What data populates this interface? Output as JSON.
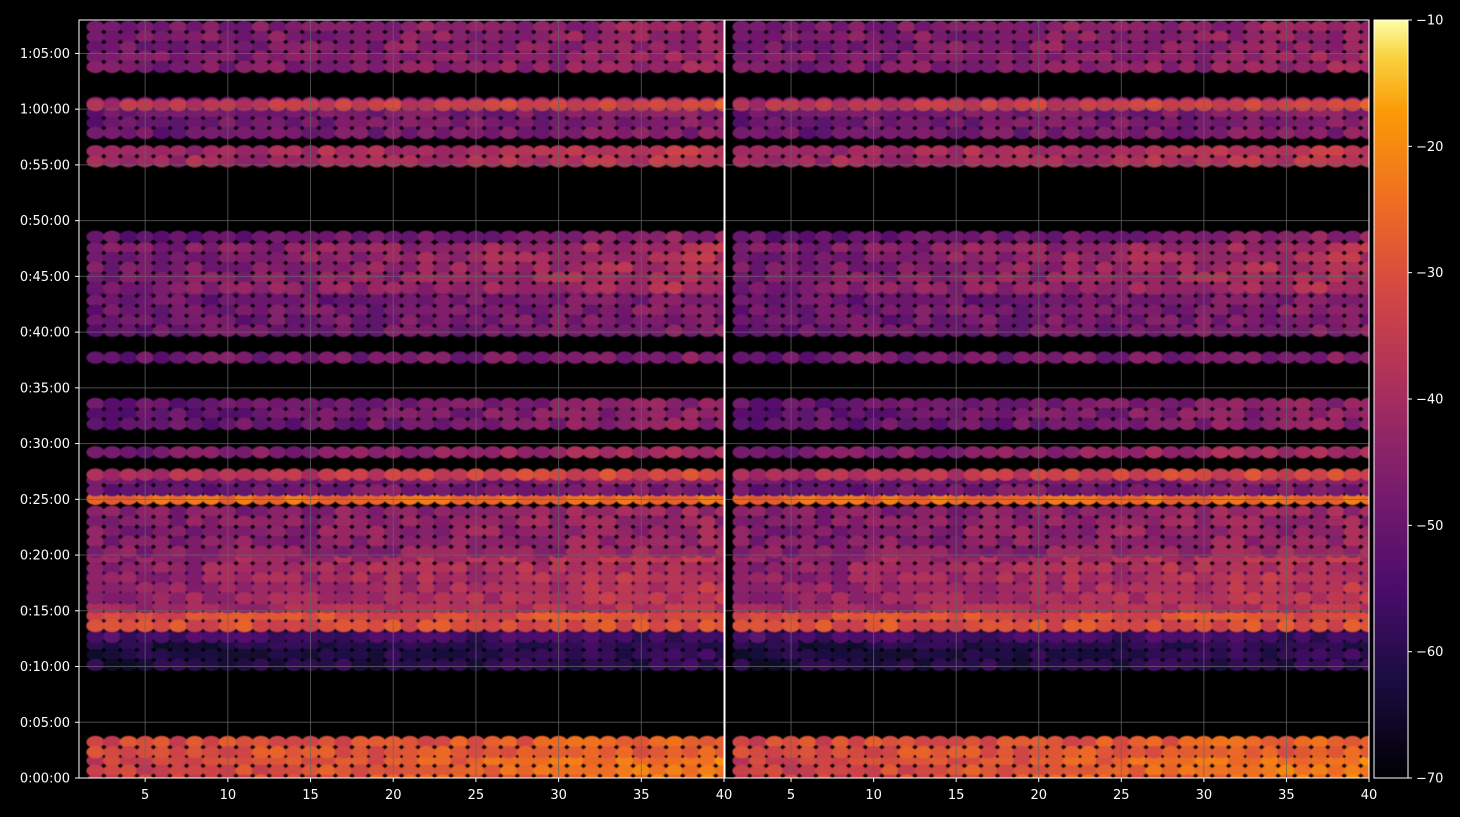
{
  "chart_data": {
    "type": "heatmap",
    "colormap": "inferno",
    "grid": true,
    "background": "#000000",
    "grid_color": "#666666",
    "colorbar": {
      "position": "right",
      "range": [
        -70,
        -10
      ],
      "ticks": [
        -10,
        -20,
        -30,
        -40,
        -50,
        -60,
        -70
      ],
      "tick_labels": [
        "−10",
        "−20",
        "−30",
        "−40",
        "−50",
        "−60",
        "−70"
      ]
    },
    "ylim_seconds": [
      0,
      4080
    ],
    "y_ticks_seconds": [
      0,
      300,
      600,
      900,
      1200,
      1500,
      1800,
      2100,
      2400,
      2700,
      3000,
      3300,
      3600,
      3900
    ],
    "y_tick_labels": [
      "0:00:00",
      "0:05:00",
      "0:10:00",
      "0:15:00",
      "0:20:00",
      "0:25:00",
      "0:30:00",
      "0:35:00",
      "0:40:00",
      "0:45:00",
      "0:50:00",
      "0:55:00",
      "1:00:00",
      "1:05:00"
    ],
    "panels": [
      {
        "xlim": [
          1,
          40
        ],
        "x_ticks": [
          5,
          10,
          15,
          20,
          25,
          30,
          35,
          40
        ],
        "x_tick_labels": [
          "5",
          "10",
          "15",
          "20",
          "25",
          "30",
          "35",
          "40"
        ]
      },
      {
        "xlim": [
          1,
          40
        ],
        "x_ticks": [
          5,
          10,
          15,
          20,
          25,
          30,
          35,
          40
        ],
        "x_tick_labels": [
          "5",
          "10",
          "15",
          "20",
          "25",
          "30",
          "35",
          "40"
        ]
      }
    ],
    "x_bins": [
      2,
      40
    ],
    "bands": [
      {
        "t": [
          0,
          120
        ],
        "level": -34,
        "x_gain": 12
      },
      {
        "t": [
          150,
          220
        ],
        "level": -32,
        "x_gain": 6
      },
      {
        "t": [
          600,
          1120
        ],
        "level": -62,
        "x_gain": 3
      },
      {
        "t": [
          760,
          1110
        ],
        "level": -56,
        "x_gain": 0
      },
      {
        "t": [
          840,
          900
        ],
        "level": -30,
        "x_gain": 0
      },
      {
        "t": [
          920,
          1000
        ],
        "level": -42,
        "x_gain": 6
      },
      {
        "t": [
          980,
          1210
        ],
        "level": -44,
        "x_gain": 8
      },
      {
        "t": [
          1230,
          1460
        ],
        "level": -46,
        "x_gain": 4
      },
      {
        "t": [
          1480,
          1530
        ],
        "level": -24,
        "x_gain": 0
      },
      {
        "t": [
          1560,
          1630
        ],
        "level": -50,
        "x_gain": 4
      },
      {
        "t": [
          1640,
          1660
        ],
        "level": -40,
        "x_gain": 10
      },
      {
        "t": [
          1760,
          1780
        ],
        "level": -48,
        "x_gain": 8
      },
      {
        "t": [
          1890,
          2040
        ],
        "level": -52,
        "x_gain": 8
      },
      {
        "t": [
          2270,
          2290
        ],
        "level": -50,
        "x_gain": 4
      },
      {
        "t": [
          2400,
          2650
        ],
        "level": -50,
        "x_gain": 4
      },
      {
        "t": [
          2660,
          2880
        ],
        "level": -48,
        "x_gain": 10
      },
      {
        "t": [
          2920,
          2940
        ],
        "level": -52,
        "x_gain": 8
      },
      {
        "t": [
          3300,
          3400
        ],
        "level": -42,
        "x_gain": 6
      },
      {
        "t": [
          3450,
          3660
        ],
        "level": -50,
        "x_gain": 4
      },
      {
        "t": [
          3620,
          3650
        ],
        "level": -38,
        "x_gain": 8
      },
      {
        "t": [
          3830,
          4070
        ],
        "level": -48,
        "x_gain": 6
      }
    ]
  }
}
